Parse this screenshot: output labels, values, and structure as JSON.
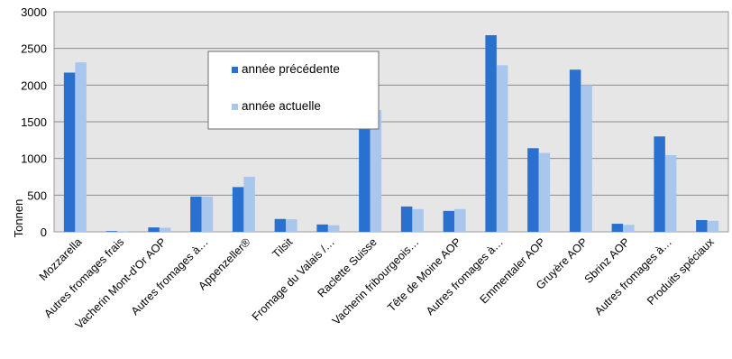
{
  "chart_data": {
    "type": "bar",
    "title": "",
    "xlabel": "",
    "ylabel": "Tonnen",
    "ylim": [
      0,
      3000
    ],
    "yticks": [
      0,
      500,
      1000,
      1500,
      2000,
      2500,
      3000
    ],
    "grid": true,
    "legend_position": "upper-center",
    "categories": [
      "Mozzarella",
      "Autres fromages frais",
      "Vacherin Mont-d'Or AOP",
      "Autres fromages à…",
      "Appenzeller®",
      "Tilsit",
      "Fromage du Valais /…",
      "Raclette Suisse",
      "Vacherin fribourgeois…",
      "Tête de Moine AOP",
      "Autres fromages à…",
      "Emmentaler AOP",
      "Gruyère AOP",
      "Sbrinz AOP",
      "Autres fromages à…",
      "Produits spéciaux"
    ],
    "series": [
      {
        "name": "année précédente",
        "color": "#2a71cf",
        "values": [
          2170,
          10,
          60,
          480,
          610,
          175,
          100,
          1490,
          345,
          285,
          2680,
          1140,
          2210,
          110,
          1300,
          160
        ]
      },
      {
        "name": "année actuelle",
        "color": "#a9c6ec",
        "values": [
          2310,
          8,
          55,
          480,
          750,
          170,
          90,
          1660,
          310,
          310,
          2270,
          1075,
          2000,
          95,
          1045,
          150
        ]
      }
    ]
  }
}
